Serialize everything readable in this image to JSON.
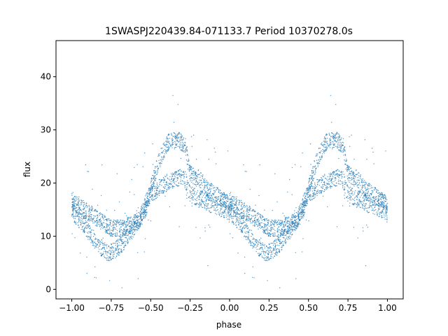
{
  "chart_data": {
    "type": "scatter",
    "title": "1SWASPJ220439.84-071133.7 Period 10370278.0s",
    "xlabel": "phase",
    "ylabel": "flux",
    "xlim": [
      -1.1,
      1.1
    ],
    "ylim": [
      -1.8,
      46.8
    ],
    "xticks": [
      -1.0,
      -0.75,
      -0.5,
      -0.25,
      0.0,
      0.25,
      0.5,
      0.75,
      1.0
    ],
    "xtick_labels": [
      "−1.00",
      "−0.75",
      "−0.50",
      "−0.25",
      "0.00",
      "0.25",
      "0.50",
      "0.75",
      "1.00"
    ],
    "yticks": [
      0,
      10,
      20,
      30,
      40
    ],
    "ytick_labels": [
      "0",
      "10",
      "20",
      "30",
      "40"
    ],
    "grid": false,
    "marker_color": "#1f77b4",
    "series": [
      {
        "phase_fold": "repeated over -1..0 and 0..1",
        "x": [
          0.0,
          0.02,
          0.05,
          0.08,
          0.1,
          0.13,
          0.15,
          0.18,
          0.2,
          0.22,
          0.25,
          0.28,
          0.3,
          0.33,
          0.35,
          0.38,
          0.4,
          0.43,
          0.45,
          0.48,
          0.5,
          0.53,
          0.55,
          0.58,
          0.6,
          0.62,
          0.65,
          0.68,
          0.7,
          0.72,
          0.75,
          0.78,
          0.8,
          0.83,
          0.85,
          0.88,
          0.9,
          0.93,
          0.95,
          0.98,
          1.0
        ],
        "upper_branch": [
          17,
          16,
          15.5,
          15,
          14.5,
          14,
          13.5,
          13,
          12.5,
          12,
          11.5,
          11.5,
          11.5,
          11.5,
          12,
          12,
          12.5,
          13,
          14,
          16,
          19,
          22,
          24,
          26,
          27,
          28,
          28,
          28,
          27.5,
          27,
          22,
          21,
          21,
          20,
          19,
          18.5,
          18,
          17.5,
          17,
          16.5,
          15
        ],
        "lower_branch": [
          15,
          14,
          13,
          12,
          11,
          10,
          9,
          8,
          7.5,
          7,
          7,
          7.5,
          8,
          9,
          10,
          11,
          12,
          13,
          15,
          17,
          18,
          18.5,
          19,
          19.5,
          20,
          20.5,
          20.5,
          21,
          21,
          20.5,
          18,
          17.5,
          17,
          17,
          16.5,
          16,
          16,
          15.5,
          15,
          15,
          14
        ]
      }
    ]
  }
}
